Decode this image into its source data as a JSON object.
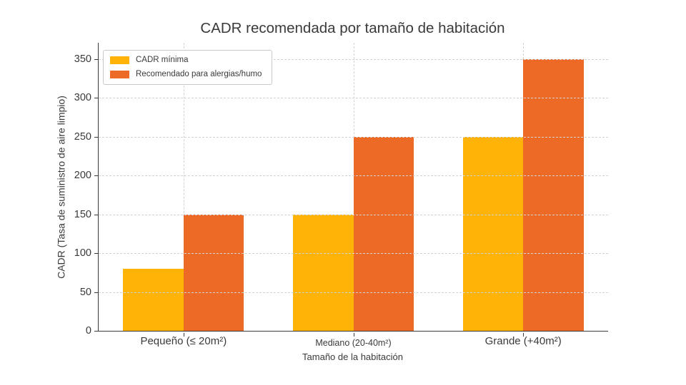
{
  "colors": {
    "text": "#3a3a3a",
    "spine": "#3a3a3a",
    "gridline": "#d2d2d2",
    "legend_border": "#c9c9c9",
    "background": "#ffffff"
  },
  "chart_data": {
    "type": "bar",
    "title": "CADR recomendada por tamaño de habitación",
    "xlabel": "Tamaño de la habitación",
    "ylabel": "CADR (Tasa de suministro de aire limpio)",
    "categories": [
      "Pequeño (≤ 20m²)",
      "Mediano (20-40m²)",
      "Grande (+40m²)"
    ],
    "series": [
      {
        "name": "CADR mínima",
        "color": "#ffb306",
        "values": [
          80,
          150,
          250
        ]
      },
      {
        "name": "Recomendado para alergias/humo",
        "color": "#ec6926",
        "values": [
          150,
          250,
          350
        ]
      }
    ],
    "yticks": [
      0,
      50,
      100,
      150,
      200,
      250,
      300,
      350
    ],
    "ylim": [
      0,
      371
    ],
    "grid": true,
    "gridline_style": "dashed",
    "legend_position": "upper left",
    "category_label_sizes": [
      "normal",
      "small",
      "normal"
    ]
  }
}
